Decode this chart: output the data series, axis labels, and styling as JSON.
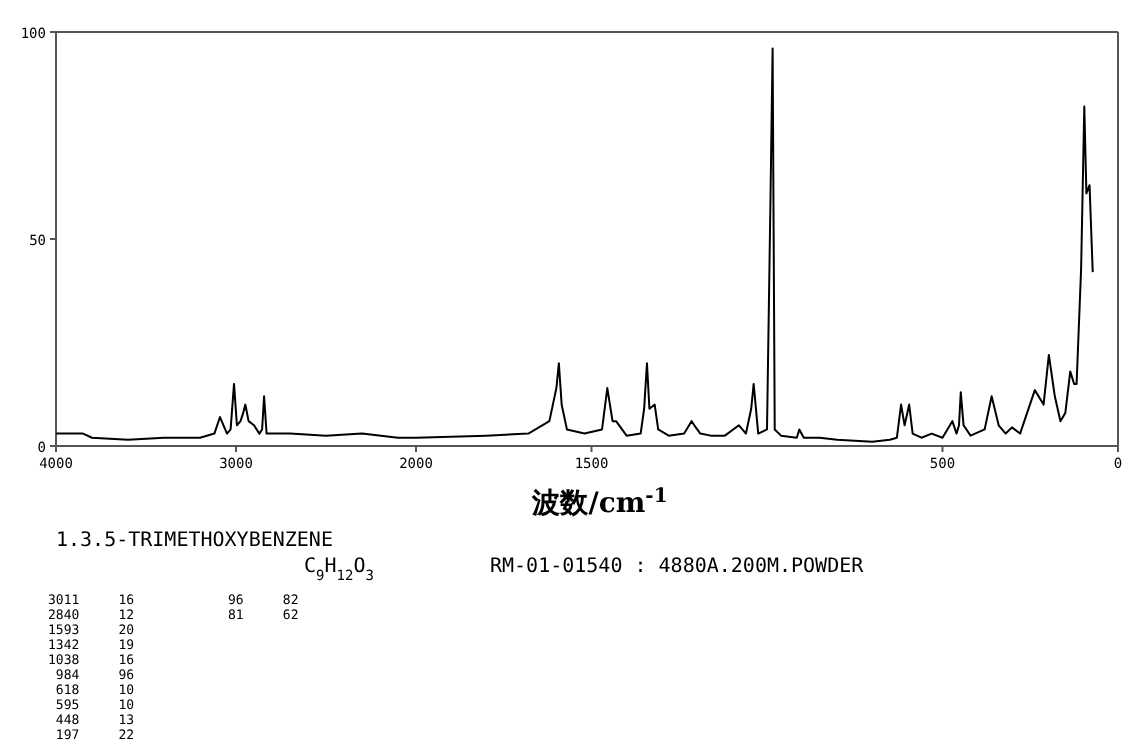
{
  "chart_data": [
    {
      "type": "line",
      "title": "1.3.5-TRIMETHOXYBENZENE",
      "subtitle": "C$_{9}$H$_{12}$O$_{3}$",
      "annotations": [
        "RM-01-01540 : 4880A.200M.POWDER",
        "3011     16            96     82",
        "2840     12            81     62",
        "1593     20",
        "1342     19",
        "1038     16",
        " 984     96",
        " 618     10",
        " 595     10",
        " 448     13",
        " 197     22"
      ],
      "x": [
        4000,
        3850,
        3800,
        3600,
        3400,
        3200,
        3120,
        3089,
        3050,
        3030,
        3011,
        2995,
        2975,
        2960,
        2948,
        2930,
        2900,
        2870,
        2855,
        2844,
        2830,
        2800,
        2700,
        2500,
        2300,
        2100,
        2000
      ],
      "values": [
        3,
        3,
        2,
        1.5,
        2,
        2,
        3,
        7,
        3,
        4,
        15,
        5,
        6,
        8,
        10,
        6,
        5,
        3,
        4,
        12,
        3,
        3,
        3,
        2.5,
        3,
        2,
        2
      ],
      "color": "#000000",
      "xlim": [
        4000,
        2000
      ],
      "xticks": [
        4000,
        3000,
        2000
      ],
      "ylim": [
        0,
        100
      ],
      "yticks": [
        0,
        50,
        100
      ]
    },
    {
      "type": "line",
      "xlabel": "波数/cm$^{-1}$",
      "x": [
        2000,
        1800,
        1680,
        1620,
        1600,
        1593,
        1585,
        1570,
        1520,
        1470,
        1455,
        1440,
        1430,
        1400,
        1360,
        1350,
        1342,
        1335,
        1320,
        1310,
        1280,
        1236,
        1215,
        1207,
        1190,
        1160,
        1120,
        1080,
        1060,
        1045,
        1038,
        1025,
        1000,
        990,
        984,
        978,
        960,
        915,
        908,
        895,
        850,
        800,
        700,
        650,
        630,
        618,
        608,
        595,
        585,
        560,
        531,
        500,
        472,
        460,
        453,
        448,
        440,
        420,
        380,
        360,
        340,
        320,
        302,
        279,
        237,
        212,
        197,
        180,
        164,
        150,
        136,
        125,
        118,
        105,
        96,
        90,
        81,
        72
      ],
      "values": [
        2,
        2.5,
        3,
        6,
        14,
        20,
        10,
        4,
        3,
        4,
        14,
        6,
        6,
        2.5,
        3,
        9,
        20,
        9,
        10,
        4,
        2.5,
        3,
        6,
        5,
        3,
        2.5,
        2.5,
        5,
        3,
        9,
        15,
        3,
        4,
        60,
        96,
        4,
        2.5,
        2,
        4,
        2,
        2,
        1.5,
        1,
        1.5,
        2,
        10,
        5,
        10,
        3,
        2,
        3,
        2,
        6,
        3,
        5,
        13,
        5,
        2.5,
        4,
        12,
        5,
        3,
        4.5,
        3,
        13.5,
        10,
        22,
        12,
        6,
        8,
        18,
        15,
        15,
        43,
        82,
        61,
        63,
        42
      ],
      "color": "#000000",
      "xlim": [
        2000,
        0
      ],
      "xticks": [
        1500,
        500,
        0
      ],
      "ylim": [
        0,
        100
      ],
      "yticks": [
        0,
        50,
        100
      ],
      "tick_labels": "x"
    }
  ]
}
